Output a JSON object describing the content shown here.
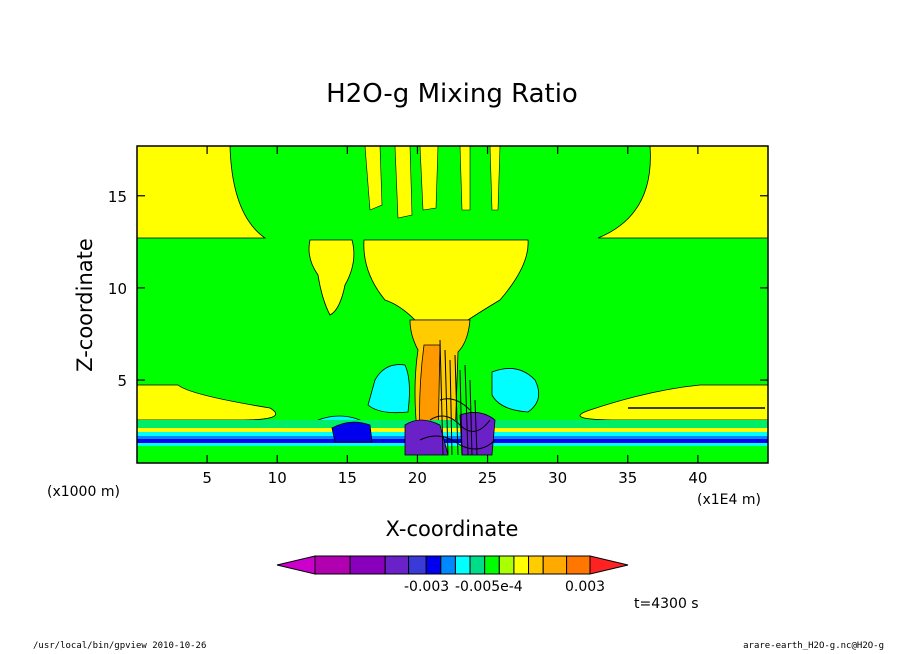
{
  "chart_data": {
    "type": "heatmap",
    "title": "H2O-g Mixing Ratio",
    "xlabel": "X-coordinate",
    "ylabel": "Z-coordinate",
    "x_unit_left": "(x1000 m)",
    "x_unit_right": "(x1E4 m)",
    "xlim": [
      0,
      45
    ],
    "ylim": [
      0.5,
      17.7
    ],
    "x_ticks": [
      5,
      10,
      15,
      20,
      25,
      30,
      35,
      40
    ],
    "y_ticks": [
      5,
      10,
      15
    ],
    "colorbar": {
      "labels": [
        "-0.003",
        "-0.005e-4",
        "0.003"
      ],
      "colors": [
        "#cc00cc",
        "#b000b0",
        "#8800bb",
        "#6a22c8",
        "#3a3ad8",
        "#0000ee",
        "#0088ff",
        "#00ffff",
        "#00dd88",
        "#00ff00",
        "#aaff00",
        "#ffff00",
        "#ffcc00",
        "#ffaa00",
        "#ff7700",
        "#ff2222"
      ]
    },
    "time_label": "t=4300 s",
    "colors": {
      "green": "#00ff00",
      "yellow": "#ffff00",
      "orange": "#ffaa00",
      "cyan": "#00ffff",
      "blue": "#0000ee",
      "purple": "#7733cc"
    }
  },
  "footer": {
    "left": "/usr/local/bin/gpview  2010-10-26",
    "right": "arare-earth_H2O-g.nc@H2O-g"
  }
}
